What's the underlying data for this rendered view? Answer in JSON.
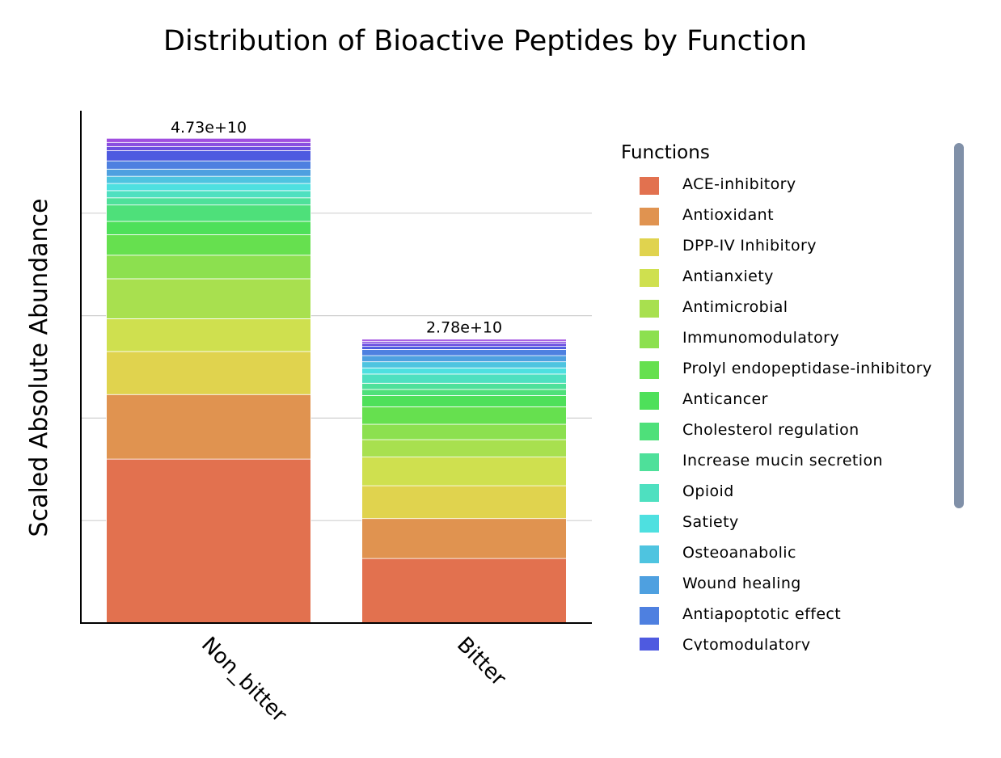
{
  "chart_data": {
    "type": "bar",
    "stacked": true,
    "title": "Distribution of Bioactive Peptides by Function",
    "ylabel": "Scaled Absolute Abundance",
    "xlabel": "",
    "categories": [
      "Non_bitter",
      "Bitter"
    ],
    "totals": [
      47300000000,
      27800000000
    ],
    "total_labels": [
      "4.73e+10",
      "2.78e+10"
    ],
    "ylim": [
      0,
      50000000000
    ],
    "y_gridlines": [
      10000000000,
      20000000000,
      30000000000,
      40000000000
    ],
    "legend": {
      "title": "Functions",
      "placement": "right"
    },
    "series": [
      {
        "name": "ACE-inhibitory",
        "color": "#e2714f",
        "values": [
          16000000000,
          6300000000
        ]
      },
      {
        "name": "Antioxidant",
        "color": "#e09350",
        "values": [
          6300000000,
          3900000000
        ]
      },
      {
        "name": "DPP-IV Inhibitory",
        "color": "#e0d34e",
        "values": [
          4200000000,
          3200000000
        ]
      },
      {
        "name": "Antianxiety",
        "color": "#cfe04f",
        "values": [
          3200000000,
          2800000000
        ]
      },
      {
        "name": "Antimicrobial",
        "color": "#a8e04f",
        "values": [
          3900000000,
          1700000000
        ]
      },
      {
        "name": "Immunomodulatory",
        "color": "#8ce04f",
        "values": [
          2300000000,
          1500000000
        ]
      },
      {
        "name": "Prolyl endopeptidase-inhibitory",
        "color": "#66e04f",
        "values": [
          2000000000,
          1700000000
        ]
      },
      {
        "name": "Anticancer",
        "color": "#4ee05a",
        "values": [
          1300000000,
          1100000000
        ]
      },
      {
        "name": "Cholesterol regulation",
        "color": "#4ee07a",
        "values": [
          1600000000,
          600000000
        ]
      },
      {
        "name": "Increase mucin secretion",
        "color": "#4ee09a",
        "values": [
          700000000,
          600000000
        ]
      },
      {
        "name": "Opioid",
        "color": "#4ee0c0",
        "values": [
          700000000,
          900000000
        ]
      },
      {
        "name": "Satiety",
        "color": "#4ee0e0",
        "values": [
          700000000,
          600000000
        ]
      },
      {
        "name": "Osteoanabolic",
        "color": "#4ec4e0",
        "values": [
          700000000,
          600000000
        ]
      },
      {
        "name": "Wound healing",
        "color": "#4ea0e0",
        "values": [
          700000000,
          600000000
        ]
      },
      {
        "name": "Antiapoptotic effect",
        "color": "#4e80e0",
        "values": [
          800000000,
          600000000
        ]
      },
      {
        "name": "Cytomodulatory",
        "color": "#4e5ae0",
        "values": [
          1000000000,
          300000000
        ]
      },
      {
        "name": "",
        "color": "#6a4ee0",
        "values": [
          400000000,
          300000000
        ]
      },
      {
        "name": "",
        "color": "#8a4ee0",
        "values": [
          400000000,
          200000000
        ]
      },
      {
        "name": "",
        "color": "#a04ee0",
        "values": [
          400000000,
          200000000
        ]
      }
    ]
  }
}
